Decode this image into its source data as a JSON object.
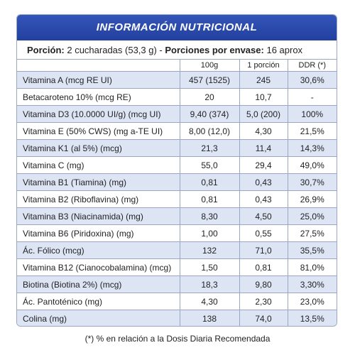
{
  "header": {
    "title": "INFORMACIÓN NUTRICIONAL"
  },
  "portion": {
    "label": "Porción:",
    "value": "2 cucharadas (53,3 g) -",
    "servings_label": "Porciones por envase:",
    "servings_value": "16 aprox"
  },
  "table": {
    "columns": [
      "100g",
      "1 porción",
      "DDR (*)"
    ],
    "rows": [
      [
        "Vitamina A (mcg RE UI)",
        "457 (1525)",
        "245",
        "30,6%"
      ],
      [
        "Betacaroteno 10% (mcg RE)",
        "20",
        "10,7",
        "-"
      ],
      [
        "Vitamina D3 (10.0000 UI/g) (mcg UI)",
        "9,40 (374)",
        "5,0 (200)",
        "100%"
      ],
      [
        "Vitamina E (50% CWS) (mg a-TE UI)",
        "8,00 (12,0)",
        "4,30",
        "21,5%"
      ],
      [
        "Vitamina K1 (al 5%) (mcg)",
        "21,3",
        "11,4",
        "14,3%"
      ],
      [
        "Vitamina C (mg)",
        "55,0",
        "29,4",
        "49,0%"
      ],
      [
        "Vitamina B1 (Tiamina) (mg)",
        "0,81",
        "0,43",
        "30,7%"
      ],
      [
        "Vitamina B2 (Riboflavina) (mg)",
        "0,81",
        "0,43",
        "26,9%"
      ],
      [
        "Vitamina B3 (Niacinamida) (mg)",
        "8,30",
        "4,50",
        "25,0%"
      ],
      [
        "Vitamina B6 (Piridoxina) (mg)",
        "1,00",
        "0,55",
        "27,5%"
      ],
      [
        "Ác. Fólico (mcg)",
        "132",
        "71,0",
        "35,5%"
      ],
      [
        "Vitamina B12 (Cianocobalamina) (mcg)",
        "1,50",
        "0,81",
        "81,0%"
      ],
      [
        "Biotina (Biotina 2%) (mcg)",
        "18,3",
        "9,80",
        "3,30%"
      ],
      [
        "Ác. Pantoténico (mg)",
        "4,30",
        "2,30",
        "23,0%"
      ],
      [
        "Colina (mg)",
        "138",
        "74,0",
        "13,5%"
      ]
    ]
  },
  "footnote": "(*) % en relación a la Dosis Diaria Recomendada"
}
